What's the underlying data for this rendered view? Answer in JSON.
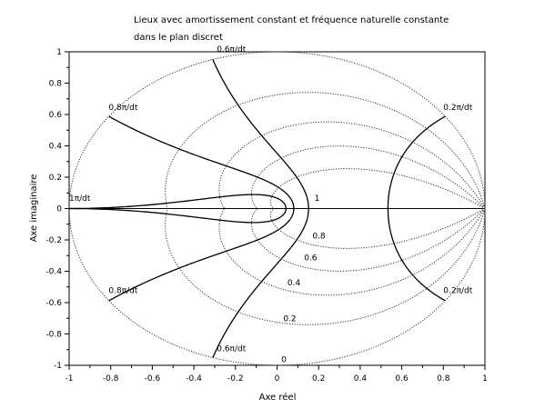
{
  "chart_data": {
    "type": "line",
    "title_line1": "Lieux avec amortissement constant et fréquence naturelle constante",
    "title_line2": "dans le plan discret",
    "xlabel": "Axe réel",
    "ylabel": "Axe imaginaire",
    "xlim": [
      -1,
      1
    ],
    "ylim": [
      -1,
      1
    ],
    "x_ticks": [
      "-1",
      "-0.8",
      "-0.6",
      "-0.4",
      "-0.2",
      "0",
      "0.2",
      "0.4",
      "0.6",
      "0.8",
      "1"
    ],
    "y_ticks": [
      "-1",
      "-0.8",
      "-0.6",
      "-0.4",
      "-0.2",
      "0",
      "0.2",
      "0.4",
      "0.6",
      "0.8",
      "1"
    ],
    "grid": false,
    "damping_values": [
      0,
      0.2,
      0.4,
      0.6,
      0.8,
      1
    ],
    "damping_labels": [
      {
        "text": "1",
        "x": 0.18,
        "y": 0.05
      },
      {
        "text": "0.8",
        "x": 0.17,
        "y": -0.19
      },
      {
        "text": "0.6",
        "x": 0.13,
        "y": -0.33
      },
      {
        "text": "0.4",
        "x": 0.05,
        "y": -0.49
      },
      {
        "text": "0.2",
        "x": 0.03,
        "y": -0.72
      },
      {
        "text": "0",
        "x": 0.02,
        "y": -0.98
      }
    ],
    "frequency_values": [
      0.2,
      0.6,
      0.8,
      1.0
    ],
    "frequency_labels": [
      {
        "text": "0.2π/dt",
        "x": 0.8,
        "y": 0.63
      },
      {
        "text": "0.2π/dt",
        "x": 0.8,
        "y": -0.54
      },
      {
        "text": "0.6π/dt",
        "x": -0.29,
        "y": 1.0
      },
      {
        "text": "0.6π/dt",
        "x": -0.29,
        "y": -0.91
      },
      {
        "text": "0.8π/dt",
        "x": -0.81,
        "y": 0.63
      },
      {
        "text": "0.8π/dt",
        "x": -0.81,
        "y": -0.54
      },
      {
        "text": "1π/dt",
        "x": -1.0,
        "y": 0.05
      }
    ]
  }
}
